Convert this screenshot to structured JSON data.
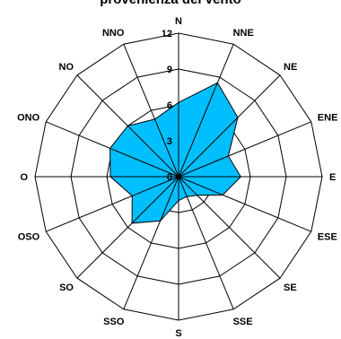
{
  "chart_data": {
    "type": "radar",
    "title": "provenienza del vento",
    "directions": [
      "N",
      "NNE",
      "NE",
      "ENE",
      "E",
      "ESE",
      "SE",
      "SSE",
      "S",
      "SSO",
      "SO",
      "OSO",
      "O",
      "ONO",
      "NO",
      "NNO"
    ],
    "values": [
      6.2,
      8.5,
      7.0,
      4.5,
      5.2,
      4.0,
      2.2,
      1.8,
      2.0,
      4.0,
      5.5,
      4.2,
      5.7,
      6.2,
      6.0,
      5.2
    ],
    "radial_ticks": [
      0,
      3,
      6,
      9,
      12
    ],
    "rlim": [
      0,
      12
    ],
    "grid": true,
    "colors": {
      "area": "#00BFFF",
      "grid": "#000000"
    }
  }
}
